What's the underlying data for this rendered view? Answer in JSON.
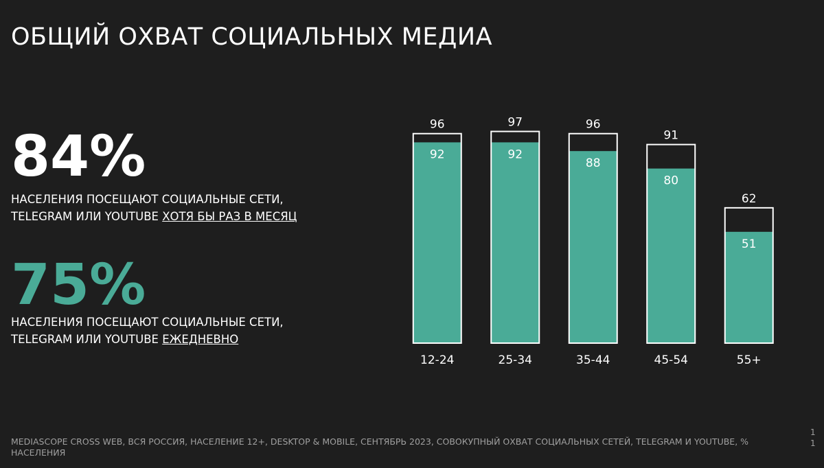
{
  "slide": {
    "title": "ОБЩИЙ ОХВАТ СОЦИАЛЬНЫХ МЕДИА",
    "stats": [
      {
        "value": "84%",
        "line1": "НАСЕЛЕНИЯ ПОСЕЩАЮТ СОЦИАЛЬНЫЕ СЕТИ,",
        "line2": "TELEGRAM ИЛИ YOUTUBE",
        "emphasis": "ХОТЯ БЫ РАЗ В МЕСЯЦ"
      },
      {
        "value": "75%",
        "line1": "НАСЕЛЕНИЯ ПОСЕЩАЮТ СОЦИАЛЬНЫЕ СЕТИ,",
        "line2": "TELEGRAM ИЛИ YOUTUBE",
        "emphasis": "ЕЖЕДНЕВНО"
      }
    ],
    "footnote": "MEDIASCOPE CROSS WEB, ВСЯ РОССИЯ, НАСЕЛЕНИЕ 12+, DESKTOP & MOBILE, СЕНТЯБРЬ 2023, СОВОКУПНЫЙ ОХВАТ СОЦИАЛЬНЫХ СЕТЕЙ, TELEGRAM И YOUTUBE, % НАСЕЛЕНИЯ",
    "page": "11"
  },
  "chart_data": {
    "type": "bar",
    "categories": [
      "12-24",
      "25-34",
      "35-44",
      "45-54",
      "55+"
    ],
    "series": [
      {
        "color": "#ffffff",
        "values": [
          96,
          97,
          96,
          91,
          62
        ]
      },
      {
        "color": "#4aab97",
        "values": [
          92,
          92,
          88,
          80,
          51
        ]
      }
    ]
  }
}
